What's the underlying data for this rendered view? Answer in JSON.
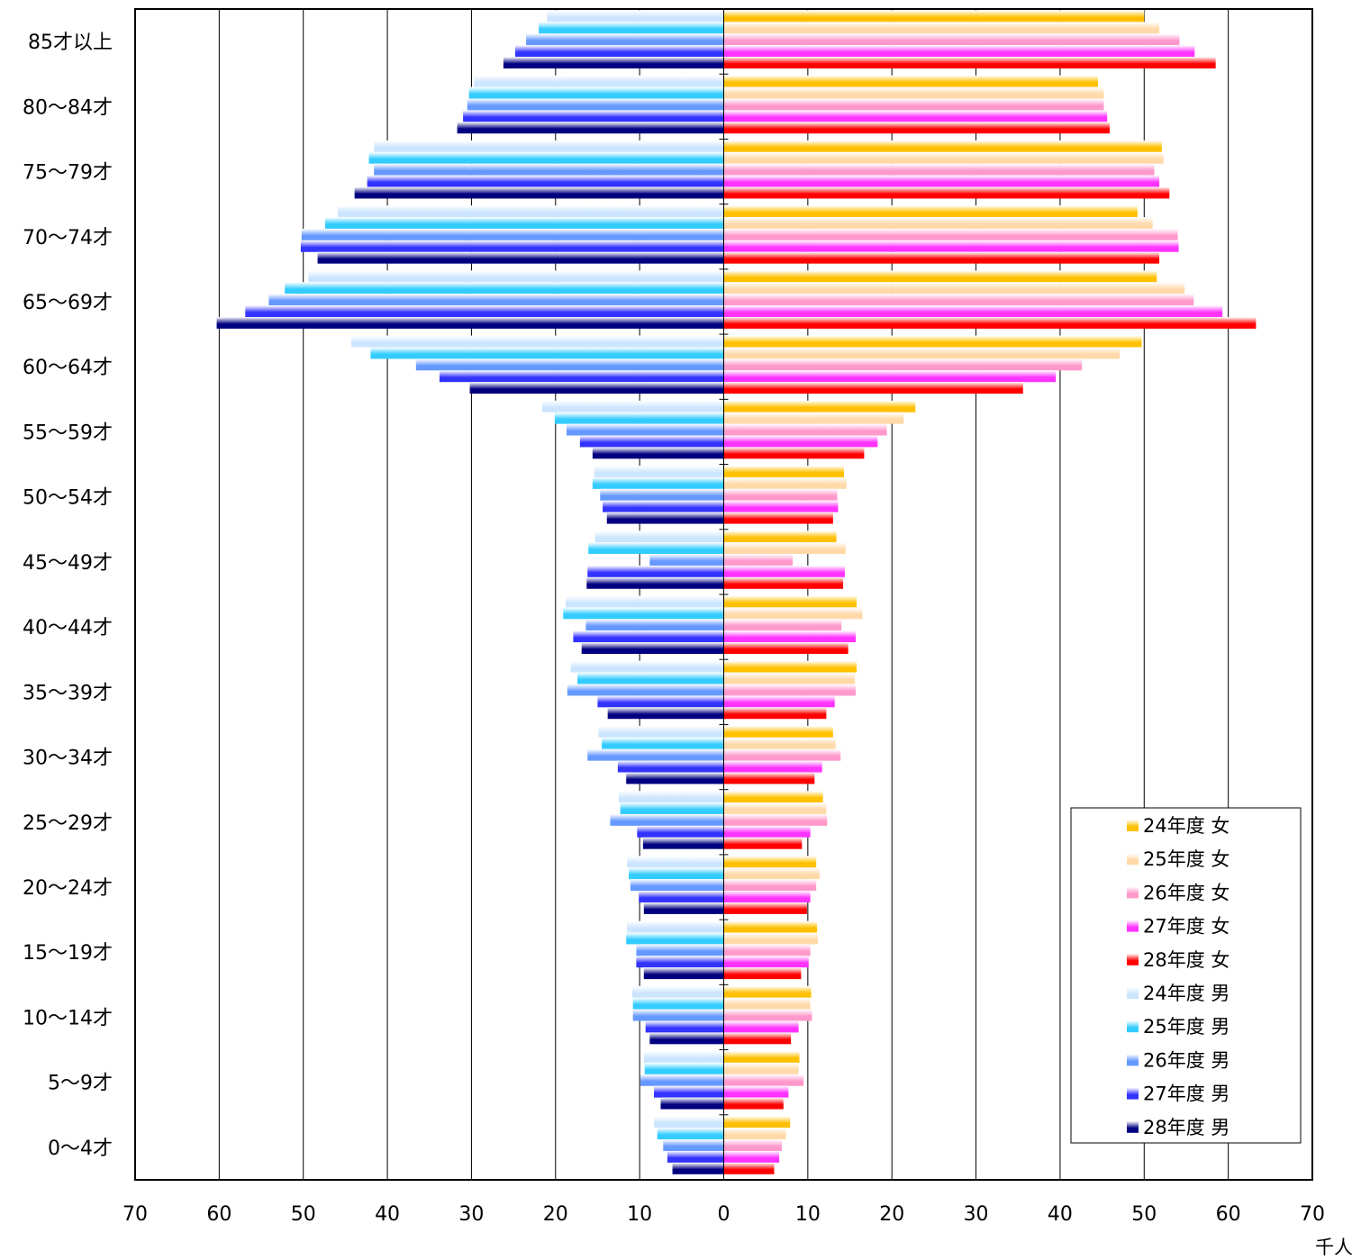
{
  "chart_data": {
    "type": "bar",
    "orientation": "horizontal-population-pyramid",
    "x_unit_label": "千人",
    "x_ticks_left": [
      "70",
      "60",
      "50",
      "40",
      "30",
      "20",
      "10",
      "0"
    ],
    "x_ticks_right": [
      "10",
      "20",
      "30",
      "40",
      "50",
      "60",
      "70"
    ],
    "xlim": [
      -70,
      70
    ],
    "grid": "vertical",
    "legend_position": "bottom-right",
    "categories": [
      "85才以上",
      "80～84才",
      "75～79才",
      "70～74才",
      "65～69才",
      "60～64才",
      "55～59才",
      "50～54才",
      "45～49才",
      "40～44才",
      "35～39才",
      "30～34才",
      "25～29才",
      "20～24才",
      "15～19才",
      "10～14才",
      "5～9才",
      "0～4才"
    ],
    "series": [
      {
        "name": "24年度 女",
        "sex": "female",
        "color": "#FFC000",
        "values": [
          50.0,
          44.5,
          52.1,
          49.2,
          51.5,
          49.7,
          22.8,
          14.3,
          13.4,
          15.8,
          15.8,
          13.0,
          11.8,
          11.0,
          11.1,
          10.4,
          9.0,
          7.9
        ]
      },
      {
        "name": "25年度 女",
        "sex": "female",
        "color": "#FFD9A8",
        "values": [
          51.8,
          45.2,
          52.3,
          51.0,
          54.8,
          47.1,
          21.4,
          14.6,
          14.5,
          16.5,
          15.6,
          13.3,
          12.2,
          11.4,
          11.2,
          10.3,
          8.9,
          7.4
        ]
      },
      {
        "name": "26年度 女",
        "sex": "female",
        "color": "#FF99CC",
        "values": [
          54.2,
          45.2,
          51.2,
          54.0,
          55.9,
          42.6,
          19.4,
          13.5,
          8.2,
          14.0,
          15.7,
          13.9,
          12.3,
          11.0,
          10.3,
          10.5,
          9.5,
          6.9
        ]
      },
      {
        "name": "27年度 女",
        "sex": "female",
        "color": "#FF33FF",
        "values": [
          56.0,
          45.6,
          51.8,
          54.1,
          59.3,
          39.5,
          18.3,
          13.6,
          14.4,
          15.7,
          13.2,
          11.7,
          10.3,
          10.3,
          10.1,
          8.9,
          7.7,
          6.6
        ]
      },
      {
        "name": "28年度 女",
        "sex": "female",
        "color": "#FF0000",
        "values": [
          58.5,
          45.9,
          53.0,
          51.8,
          63.3,
          35.6,
          16.7,
          13.0,
          14.2,
          14.8,
          12.2,
          10.8,
          9.3,
          9.9,
          9.2,
          8.0,
          7.1,
          6.0
        ]
      },
      {
        "name": "24年度 男",
        "sex": "male",
        "color": "#CCE5FF",
        "values": [
          21.0,
          29.7,
          41.6,
          45.9,
          49.4,
          44.3,
          21.6,
          15.4,
          15.3,
          18.8,
          18.2,
          14.9,
          12.5,
          11.5,
          11.5,
          10.9,
          9.5,
          8.3
        ]
      },
      {
        "name": "25年度 男",
        "sex": "male",
        "color": "#33CCFF",
        "values": [
          22.0,
          30.3,
          42.2,
          47.4,
          52.2,
          42.0,
          20.1,
          15.6,
          16.1,
          19.1,
          17.4,
          14.5,
          12.3,
          11.3,
          11.6,
          10.8,
          9.4,
          7.9
        ]
      },
      {
        "name": "26年度 男",
        "sex": "male",
        "color": "#6699FF",
        "values": [
          23.5,
          30.5,
          41.6,
          50.2,
          54.1,
          36.6,
          18.7,
          14.7,
          8.8,
          16.4,
          18.6,
          16.2,
          13.5,
          11.1,
          10.4,
          10.8,
          9.9,
          7.2
        ]
      },
      {
        "name": "27年度 男",
        "sex": "male",
        "color": "#3333FF",
        "values": [
          24.8,
          31.0,
          42.4,
          50.3,
          56.9,
          33.8,
          17.1,
          14.4,
          16.2,
          17.9,
          15.0,
          12.6,
          10.3,
          10.1,
          10.4,
          9.3,
          8.3,
          6.7
        ]
      },
      {
        "name": "28年度 男",
        "sex": "male",
        "color": "#000080",
        "values": [
          26.2,
          31.7,
          43.9,
          48.3,
          60.3,
          30.2,
          15.6,
          13.9,
          16.3,
          16.9,
          13.8,
          11.6,
          9.6,
          9.5,
          9.5,
          8.8,
          7.5,
          6.1
        ]
      }
    ]
  }
}
